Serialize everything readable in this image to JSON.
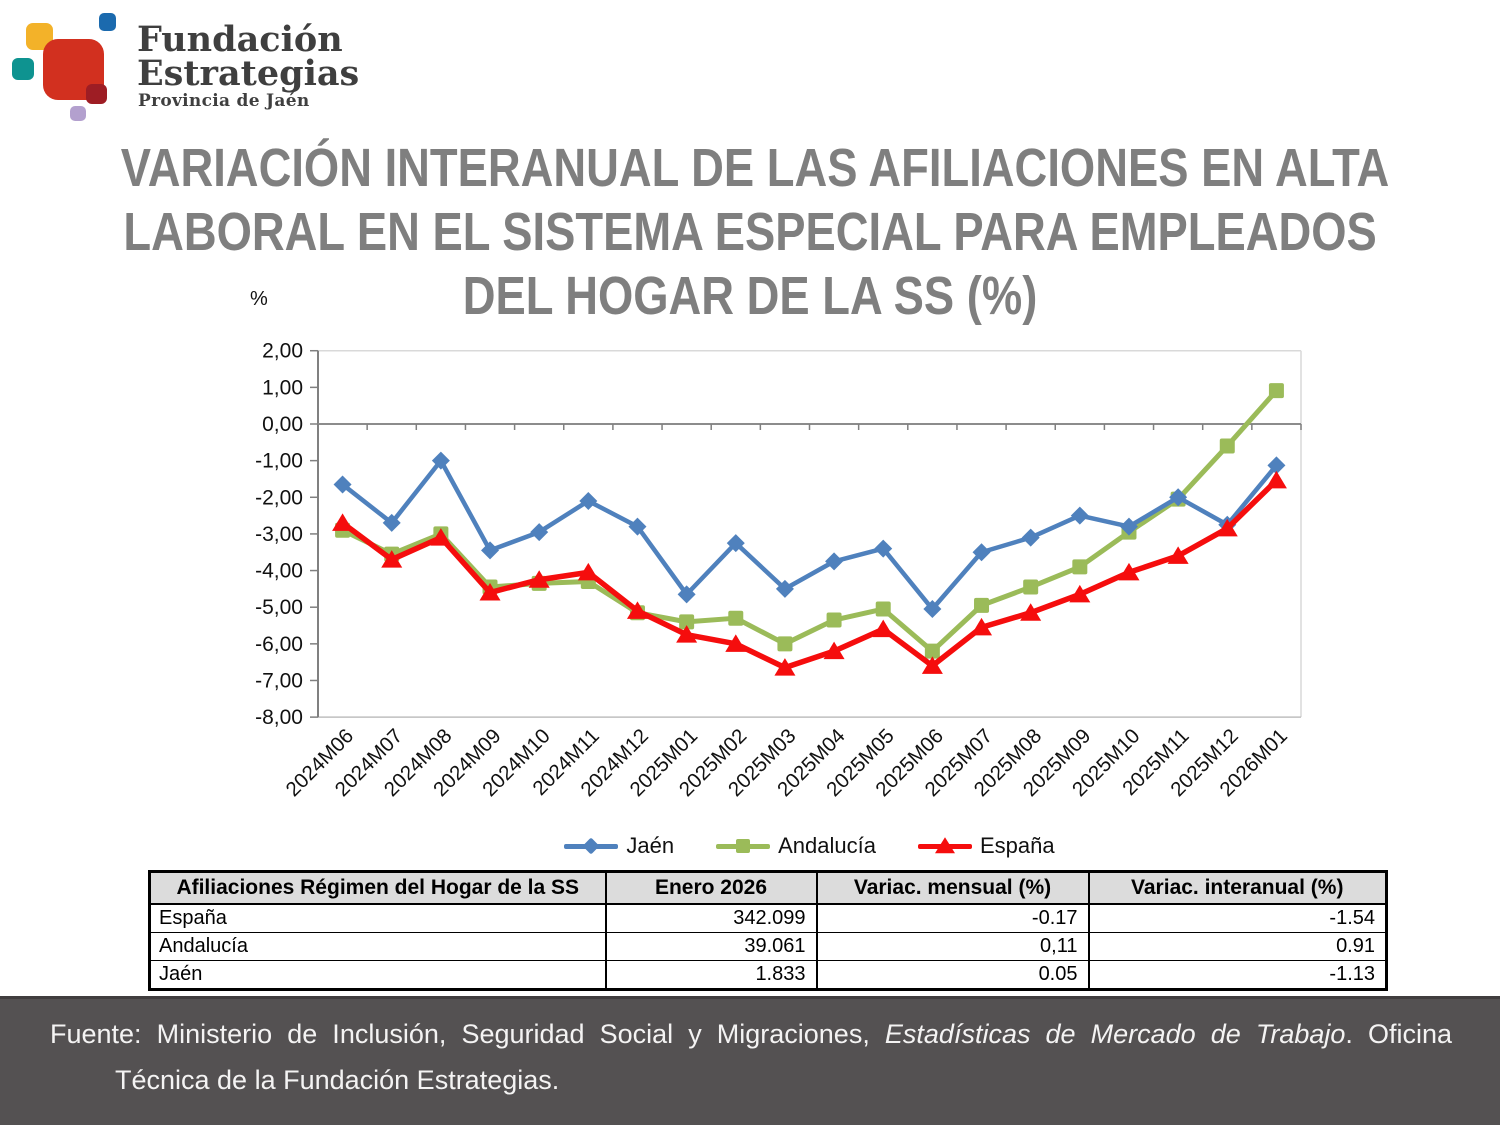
{
  "logo": {
    "org_name_line1": "Fundación",
    "org_name_line2": "Estrategias",
    "org_subtitle": "Provincia de Jaén",
    "colors": {
      "yellow": "#f3b229",
      "blue": "#1b6aae",
      "teal": "#0e9390",
      "red": "#d2301f",
      "dark_red": "#9e1d24",
      "purple": "#b3a0ce"
    }
  },
  "title": {
    "lines": [
      "VARIACIÓN INTERANUAL DE LAS AFILIACIONES EN ALTA",
      "LABORAL EN EL SISTEMA ESPECIAL PARA EMPLEADOS",
      "DEL HOGAR DE LA SS (%)"
    ],
    "color": "#7f7f7f"
  },
  "chart_data": {
    "type": "line",
    "unit_label": "%",
    "categories": [
      "2024M06",
      "2024M07",
      "2024M08",
      "2024M09",
      "2024M10",
      "2024M11",
      "2024M12",
      "2025M01",
      "2025M02",
      "2025M03",
      "2025M04",
      "2025M05",
      "2025M06",
      "2025M07",
      "2025M08",
      "2025M09",
      "2025M10",
      "2025M11",
      "2025M12",
      "2026M01"
    ],
    "series": [
      {
        "name": "Jaén",
        "color": "#4f81bd",
        "marker": "diamond",
        "values": [
          -1.65,
          -2.7,
          -1.0,
          -3.45,
          -2.95,
          -2.1,
          -2.8,
          -4.65,
          -3.25,
          -4.5,
          -3.75,
          -3.4,
          -5.05,
          -3.5,
          -3.1,
          -2.5,
          -2.8,
          -2.0,
          -2.75,
          -1.13
        ]
      },
      {
        "name": "Andalucía",
        "color": "#9bbb59",
        "marker": "square",
        "values": [
          -2.9,
          -3.55,
          -3.0,
          -4.45,
          -4.35,
          -4.3,
          -5.15,
          -5.4,
          -5.3,
          -6.0,
          -5.35,
          -5.05,
          -6.2,
          -4.95,
          -4.45,
          -3.9,
          -2.95,
          -2.05,
          -0.6,
          0.91
        ]
      },
      {
        "name": "España",
        "color": "#f50d0d",
        "marker": "triangle",
        "values": [
          -2.7,
          -3.7,
          -3.1,
          -4.6,
          -4.25,
          -4.05,
          -5.1,
          -5.75,
          -6.0,
          -6.65,
          -6.2,
          -5.6,
          -6.6,
          -5.55,
          -5.15,
          -4.65,
          -4.05,
          -3.6,
          -2.85,
          -1.54
        ]
      }
    ],
    "ylim": [
      -8,
      2
    ],
    "ytick_step": 1,
    "ytick_labels": [
      "2,00",
      "1,00",
      "0,00",
      "-1,00",
      "-2,00",
      "-3,00",
      "-4,00",
      "-5,00",
      "-6,00",
      "-7,00",
      "-8,00"
    ],
    "grid": "horizontal line at 0 and top border at 2 only",
    "legend_position": "bottom-center",
    "draw_order": [
      1,
      0,
      2
    ]
  },
  "table": {
    "headers": [
      "Afiliaciones Régimen del Hogar de la SS",
      "Enero 2026",
      "Variac. mensual (%)",
      "Variac. interanual (%)"
    ],
    "rows": [
      {
        "region": "España",
        "enero_2026": "342.099",
        "variac_mensual": "-0.17",
        "variac_interanual": "-1.54"
      },
      {
        "region": "Andalucía",
        "enero_2026": "39.061",
        "variac_mensual": "0,11",
        "variac_interanual": "0.91"
      },
      {
        "region": "Jaén",
        "enero_2026": "1.833",
        "variac_mensual": "0.05",
        "variac_interanual": "-1.13"
      }
    ]
  },
  "footer": {
    "source_prefix": "Fuente: Ministerio de Inclusión, Seguridad Social y Migraciones, ",
    "source_italic": "Estadísticas de Mercado de Trabajo",
    "source_suffix": ". Oficina Técnica de la Fundación Estrategias."
  }
}
